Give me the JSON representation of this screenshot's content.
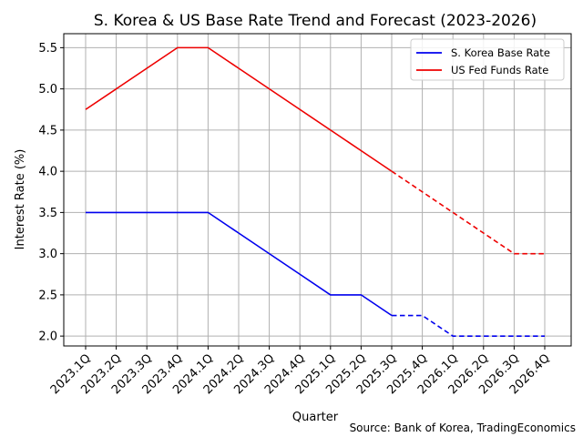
{
  "chart_data": {
    "type": "line",
    "title": "S. Korea & US Base Rate Trend and Forecast (2023-2026)",
    "xlabel": "Quarter",
    "ylabel": "Interest Rate (%)",
    "source": "Source: Bank of Korea, TradingEconomics",
    "categories": [
      "2023.1Q",
      "2023.2Q",
      "2023.3Q",
      "2023.4Q",
      "2024.1Q",
      "2024.2Q",
      "2024.3Q",
      "2024.4Q",
      "2025.1Q",
      "2025.2Q",
      "2025.3Q",
      "2025.4Q",
      "2026.1Q",
      "2026.2Q",
      "2026.3Q",
      "2026.4Q"
    ],
    "ylim": [
      1.88,
      5.67
    ],
    "yticks": [
      "2.0",
      "2.5",
      "3.0",
      "3.5",
      "4.0",
      "4.5",
      "5.0",
      "5.5"
    ],
    "grid": true,
    "legend_position": "top-right",
    "forecast_start_index": 10,
    "series": [
      {
        "name": "S. Korea Base Rate",
        "color": "#0000ee",
        "values": [
          3.5,
          3.5,
          3.5,
          3.5,
          3.5,
          3.25,
          3.0,
          2.75,
          2.5,
          2.5,
          2.25,
          2.25,
          2.0,
          2.0,
          2.0,
          2.0
        ]
      },
      {
        "name": "US Fed Funds Rate",
        "color": "#ee0000",
        "values": [
          4.75,
          5.0,
          5.25,
          5.5,
          5.5,
          5.25,
          5.0,
          4.75,
          4.5,
          4.25,
          4.0,
          3.75,
          3.5,
          3.25,
          3.0,
          3.0
        ]
      }
    ]
  }
}
